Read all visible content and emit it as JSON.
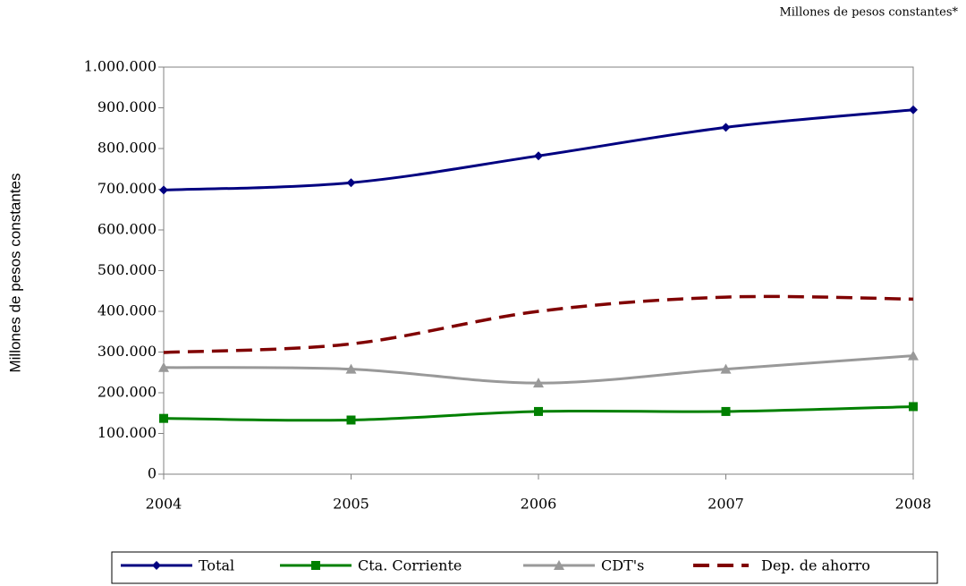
{
  "chart_data": {
    "type": "line",
    "subtitle": "Millones de pesos constantes*",
    "y_label": "Millones de pesos constantes",
    "x": [
      2004,
      2005,
      2006,
      2007,
      2008
    ],
    "xlim": [
      2004,
      2008
    ],
    "xticks": [
      2004,
      2005,
      2006,
      2007,
      2008
    ],
    "ylim": [
      0,
      1000000
    ],
    "yticks": [
      0,
      {
        "value": 100000,
        "label": "100.000"
      },
      {
        "value": 200000,
        "label": "200.000"
      },
      {
        "value": 300000,
        "label": "300.000"
      },
      {
        "value": 400000,
        "label": "400.000"
      },
      {
        "value": 500000,
        "label": "500.000"
      },
      {
        "value": 600000,
        "label": "600.000"
      },
      {
        "value": 700000,
        "label": "700.000"
      },
      {
        "value": 800000,
        "label": "800.000"
      },
      {
        "value": 900000,
        "label": "900.000"
      },
      {
        "value": 1000000,
        "label": "1.000.000"
      }
    ],
    "grid": false,
    "series": [
      {
        "name": "Total",
        "color": "#000080",
        "marker": "diamond",
        "values": [
          698000,
          716000,
          782000,
          852000,
          895000
        ]
      },
      {
        "name": "Cta. Corriente",
        "color": "#008000",
        "marker": "square",
        "values": [
          137000,
          133000,
          154000,
          154000,
          166000
        ]
      },
      {
        "name": "CDT's",
        "color": "#999999",
        "marker": "triangle",
        "values": [
          262000,
          258000,
          224000,
          258000,
          291000
        ]
      },
      {
        "name": "Dep. de ahorro",
        "color": "#800000",
        "dashed": true,
        "values": [
          299000,
          320000,
          400000,
          435000,
          430000
        ]
      }
    ]
  }
}
